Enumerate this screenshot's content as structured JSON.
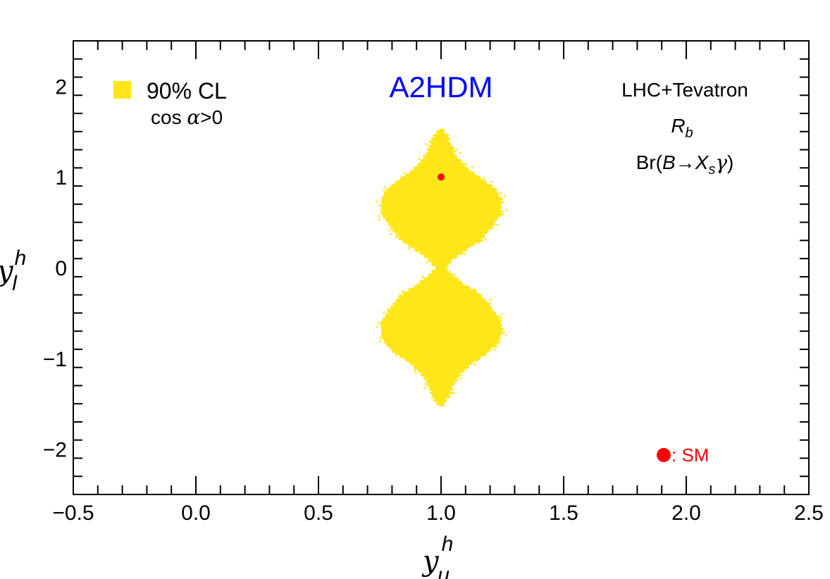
{
  "chart_data": {
    "type": "scatter",
    "title": "A2HDM",
    "xlabel": {
      "base": "y",
      "sup": "h",
      "sub": "u"
    },
    "ylabel": {
      "base": "y",
      "sup": "h",
      "sub": "l"
    },
    "xlim": [
      -0.5,
      2.5
    ],
    "ylim": [
      -2.5,
      2.5
    ],
    "x_ticks": [
      -0.5,
      0.0,
      0.5,
      1.0,
      1.5,
      2.0,
      2.5
    ],
    "x_tick_labels": [
      "−0.5",
      "0.0",
      "0.5",
      "1.0",
      "1.5",
      "2.0",
      "2.5"
    ],
    "y_ticks": [
      -2,
      -1,
      0,
      1,
      2
    ],
    "y_tick_labels": [
      "−2",
      "−1",
      "0",
      "1",
      "2"
    ],
    "grid": false,
    "legend": {
      "position": "top-left",
      "label": "90% CL",
      "sublabel_prefix": "cos ",
      "sublabel_var": "α",
      "sublabel_suffix": ">0"
    },
    "annotations": {
      "line1": "LHC+Tevatron",
      "line2_base": "R",
      "line2_sub": "b",
      "line3_prefix": "Br(",
      "line3_B": "B",
      "line3_arrow": "→",
      "line3_X": "X",
      "line3_sub": "s",
      "line3_gamma": "γ",
      "line3_suffix": ")"
    },
    "series": [
      {
        "name": "90% CL region",
        "color": "#ffe619",
        "shape": "hourglass",
        "x_center": 1.0,
        "y_range": [
          -1.52,
          1.52
        ],
        "half_width_profile": [
          [
            0.0,
            0.01
          ],
          [
            0.1,
            0.045
          ],
          [
            0.2,
            0.095
          ],
          [
            0.3,
            0.155
          ],
          [
            0.45,
            0.2
          ],
          [
            0.6,
            0.24
          ],
          [
            0.75,
            0.24
          ],
          [
            0.85,
            0.22
          ],
          [
            0.95,
            0.175
          ],
          [
            1.05,
            0.12
          ],
          [
            1.15,
            0.08
          ],
          [
            1.25,
            0.05
          ],
          [
            1.35,
            0.035
          ],
          [
            1.45,
            0.02
          ],
          [
            1.52,
            0.0
          ]
        ]
      }
    ],
    "sm_point": {
      "x": 1.0,
      "y": 1.0,
      "label": ": SM",
      "color": "#ff0000"
    }
  },
  "colors": {
    "title": "#0000ff",
    "region": "#ffe619",
    "sm": "#ff0000",
    "axis": "#000000"
  }
}
